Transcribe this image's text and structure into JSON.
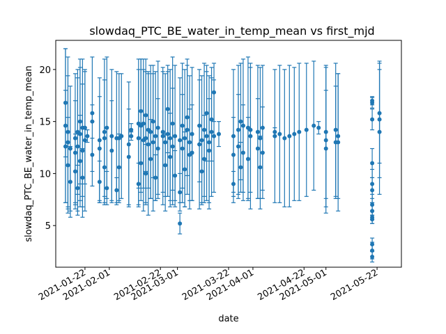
{
  "chart_data": {
    "type": "scatter",
    "title": "slowdaq_PTC_BE_water_in_temp_mean vs first_mjd",
    "xlabel": "date",
    "ylabel": "slowdaq_PTC_BE_water_in_temp_mean",
    "xlim": [
      "2021-01-10",
      "2021-06-01"
    ],
    "ylim": [
      1.0,
      22.8
    ],
    "x_tick_labels": [
      "2021-01-22",
      "2021-02-01",
      "2021-02-22",
      "2021-03-01",
      "2021-03-22",
      "2021-04-01",
      "2021-04-22",
      "2021-05-01",
      "2021-05-22"
    ],
    "y_tick_labels": [
      "5",
      "10",
      "15",
      "20"
    ],
    "error_bars": true,
    "grid": false,
    "legend": "none",
    "color": "#1f77b4",
    "points": [
      {
        "x": "2021-01-14",
        "y": 12.6,
        "err": 5.4
      },
      {
        "x": "2021-01-14",
        "y": 14.6,
        "err": 7.4
      },
      {
        "x": "2021-01-14",
        "y": 16.8,
        "err": 5.2
      },
      {
        "x": "2021-01-15",
        "y": 13.0,
        "err": 6.4
      },
      {
        "x": "2021-01-15",
        "y": 14.0,
        "err": 7.2
      },
      {
        "x": "2021-01-15",
        "y": 10.8,
        "err": 4.6
      },
      {
        "x": "2021-01-16",
        "y": 9.2,
        "err": 3.4
      },
      {
        "x": "2021-01-16",
        "y": 12.4,
        "err": 6.0
      },
      {
        "x": "2021-01-18",
        "y": 13.4,
        "err": 6.2
      },
      {
        "x": "2021-01-18",
        "y": 12.0,
        "err": 5.0
      },
      {
        "x": "2021-01-18",
        "y": 10.2,
        "err": 3.6
      },
      {
        "x": "2021-01-19",
        "y": 12.6,
        "err": 6.6
      },
      {
        "x": "2021-01-19",
        "y": 14.0,
        "err": 6.0
      },
      {
        "x": "2021-01-19",
        "y": 8.6,
        "err": 2.2
      },
      {
        "x": "2021-01-20",
        "y": 13.8,
        "err": 6.4
      },
      {
        "x": "2021-01-20",
        "y": 11.2,
        "err": 4.4
      },
      {
        "x": "2021-01-20",
        "y": 15.0,
        "err": 6.0
      },
      {
        "x": "2021-01-21",
        "y": 12.2,
        "err": 6.4
      },
      {
        "x": "2021-01-21",
        "y": 14.4,
        "err": 6.6
      },
      {
        "x": "2021-01-21",
        "y": 9.6,
        "err": 2.8
      },
      {
        "x": "2021-01-22",
        "y": 13.2,
        "err": 6.8
      },
      {
        "x": "2021-01-22",
        "y": 14.4,
        "err": 5.4
      },
      {
        "x": "2021-01-23",
        "y": 13.6,
        "err": 0.6
      },
      {
        "x": "2021-01-25",
        "y": 15.8,
        "err": 0.8
      },
      {
        "x": "2021-01-25",
        "y": 15.0,
        "err": 6.2
      },
      {
        "x": "2021-01-25",
        "y": 11.8,
        "err": 1.6
      },
      {
        "x": "2021-01-28",
        "y": 13.2,
        "err": 6.0
      },
      {
        "x": "2021-01-28",
        "y": 12.4,
        "err": 5.0
      },
      {
        "x": "2021-01-28",
        "y": 9.2,
        "err": 2.0
      },
      {
        "x": "2021-01-30",
        "y": 14.0,
        "err": 7.0
      },
      {
        "x": "2021-01-30",
        "y": 13.4,
        "err": 5.6
      },
      {
        "x": "2021-01-30",
        "y": 10.6,
        "err": 3.4
      },
      {
        "x": "2021-01-31",
        "y": 14.4,
        "err": 6.8
      },
      {
        "x": "2021-01-31",
        "y": 8.6,
        "err": 1.6
      },
      {
        "x": "2021-02-02",
        "y": 13.6,
        "err": 6.4
      },
      {
        "x": "2021-02-02",
        "y": 12.2,
        "err": 4.8
      },
      {
        "x": "2021-02-04",
        "y": 13.4,
        "err": 6.4
      },
      {
        "x": "2021-02-04",
        "y": 8.4,
        "err": 1.2
      },
      {
        "x": "2021-02-05",
        "y": 13.4,
        "err": 6.2
      },
      {
        "x": "2021-02-05",
        "y": 10.6,
        "err": 3.2
      },
      {
        "x": "2021-02-06",
        "y": 13.6,
        "err": 6.0
      },
      {
        "x": "2021-02-09",
        "y": 12.8,
        "err": 6.0
      },
      {
        "x": "2021-02-09",
        "y": 11.6,
        "err": 4.6
      },
      {
        "x": "2021-02-10",
        "y": 14.2,
        "err": 0.6
      },
      {
        "x": "2021-02-10",
        "y": 13.6,
        "err": 0.4
      },
      {
        "x": "2021-02-13",
        "y": 14.8,
        "err": 6.2
      },
      {
        "x": "2021-02-13",
        "y": 13.4,
        "err": 6.6
      },
      {
        "x": "2021-02-13",
        "y": 9.0,
        "err": 2.0
      },
      {
        "x": "2021-02-14",
        "y": 16.0,
        "err": 5.0
      },
      {
        "x": "2021-02-14",
        "y": 14.6,
        "err": 6.4
      },
      {
        "x": "2021-02-14",
        "y": 11.0,
        "err": 3.6
      },
      {
        "x": "2021-02-15",
        "y": 13.2,
        "err": 6.8
      },
      {
        "x": "2021-02-15",
        "y": 14.8,
        "err": 6.2
      },
      {
        "x": "2021-02-16",
        "y": 13.4,
        "err": 6.4
      },
      {
        "x": "2021-02-16",
        "y": 10.0,
        "err": 2.8
      },
      {
        "x": "2021-02-16",
        "y": 15.6,
        "err": 5.4
      },
      {
        "x": "2021-02-17",
        "y": 12.8,
        "err": 6.8
      },
      {
        "x": "2021-02-17",
        "y": 14.2,
        "err": 5.6
      },
      {
        "x": "2021-02-18",
        "y": 14.0,
        "err": 6.4
      },
      {
        "x": "2021-02-18",
        "y": 11.4,
        "err": 3.8
      },
      {
        "x": "2021-02-19",
        "y": 13.0,
        "err": 6.6
      },
      {
        "x": "2021-02-19",
        "y": 15.0,
        "err": 5.4
      },
      {
        "x": "2021-02-20",
        "y": 13.6,
        "err": 6.2
      },
      {
        "x": "2021-02-20",
        "y": 9.6,
        "err": 2.2
      },
      {
        "x": "2021-02-21",
        "y": 14.4,
        "err": 6.4
      },
      {
        "x": "2021-02-21",
        "y": 12.4,
        "err": 4.8
      },
      {
        "x": "2021-02-23",
        "y": 13.6,
        "err": 6.6
      },
      {
        "x": "2021-02-23",
        "y": 14.0,
        "err": 5.8
      },
      {
        "x": "2021-02-24",
        "y": 13.0,
        "err": 6.6
      },
      {
        "x": "2021-02-24",
        "y": 10.8,
        "err": 3.0
      },
      {
        "x": "2021-02-25",
        "y": 13.8,
        "err": 6.0
      },
      {
        "x": "2021-02-25",
        "y": 16.2,
        "err": 4.2
      },
      {
        "x": "2021-02-26",
        "y": 13.4,
        "err": 6.6
      },
      {
        "x": "2021-02-26",
        "y": 11.6,
        "err": 4.2
      },
      {
        "x": "2021-02-27",
        "y": 14.8,
        "err": 6.4
      },
      {
        "x": "2021-02-27",
        "y": 12.6,
        "err": 5.6
      },
      {
        "x": "2021-02-28",
        "y": 13.6,
        "err": 6.8
      },
      {
        "x": "2021-02-28",
        "y": 9.8,
        "err": 2.4
      },
      {
        "x": "2021-03-02",
        "y": 13.2,
        "err": 6.0
      },
      {
        "x": "2021-03-02",
        "y": 5.2,
        "err": 1.0
      },
      {
        "x": "2021-03-02",
        "y": 8.2,
        "err": 1.8
      },
      {
        "x": "2021-03-03",
        "y": 14.6,
        "err": 6.0
      },
      {
        "x": "2021-03-03",
        "y": 12.4,
        "err": 5.2
      },
      {
        "x": "2021-03-04",
        "y": 13.4,
        "err": 6.6
      },
      {
        "x": "2021-03-04",
        "y": 10.4,
        "err": 3.6
      },
      {
        "x": "2021-03-05",
        "y": 14.2,
        "err": 6.2
      },
      {
        "x": "2021-03-05",
        "y": 15.4,
        "err": 5.6
      },
      {
        "x": "2021-03-06",
        "y": 13.0,
        "err": 6.4
      },
      {
        "x": "2021-03-06",
        "y": 11.8,
        "err": 4.4
      },
      {
        "x": "2021-03-07",
        "y": 13.8,
        "err": 6.4
      },
      {
        "x": "2021-03-07",
        "y": 12.0,
        "err": 4.6
      },
      {
        "x": "2021-03-10",
        "y": 12.8,
        "err": 6.2
      },
      {
        "x": "2021-03-10",
        "y": 14.6,
        "err": 5.4
      },
      {
        "x": "2021-03-11",
        "y": 13.2,
        "err": 6.2
      },
      {
        "x": "2021-03-11",
        "y": 10.2,
        "err": 3.0
      },
      {
        "x": "2021-03-12",
        "y": 14.2,
        "err": 6.4
      },
      {
        "x": "2021-03-12",
        "y": 11.4,
        "err": 4.2
      },
      {
        "x": "2021-03-13",
        "y": 13.6,
        "err": 6.2
      },
      {
        "x": "2021-03-13",
        "y": 15.8,
        "err": 4.6
      },
      {
        "x": "2021-03-14",
        "y": 13.0,
        "err": 6.4
      },
      {
        "x": "2021-03-14",
        "y": 12.2,
        "err": 5.0
      },
      {
        "x": "2021-03-15",
        "y": 14.0,
        "err": 6.2
      },
      {
        "x": "2021-03-15",
        "y": 15.2,
        "err": 4.0
      },
      {
        "x": "2021-03-16",
        "y": 13.6,
        "err": 5.4
      },
      {
        "x": "2021-03-16",
        "y": 17.8,
        "err": 2.8
      },
      {
        "x": "2021-03-18",
        "y": 13.8,
        "err": 1.2
      },
      {
        "x": "2021-03-24",
        "y": 13.6,
        "err": 6.4
      },
      {
        "x": "2021-03-24",
        "y": 11.8,
        "err": 3.6
      },
      {
        "x": "2021-03-24",
        "y": 9.0,
        "err": 1.2
      },
      {
        "x": "2021-03-26",
        "y": 14.2,
        "err": 6.2
      },
      {
        "x": "2021-03-26",
        "y": 12.6,
        "err": 5.0
      },
      {
        "x": "2021-03-27",
        "y": 15.0,
        "err": 5.6
      },
      {
        "x": "2021-03-27",
        "y": 10.6,
        "err": 2.4
      },
      {
        "x": "2021-03-28",
        "y": 14.6,
        "err": 6.4
      },
      {
        "x": "2021-03-28",
        "y": 12.0,
        "err": 4.6
      },
      {
        "x": "2021-03-30",
        "y": 14.4,
        "err": 6.8
      },
      {
        "x": "2021-03-30",
        "y": 11.4,
        "err": 4.0
      },
      {
        "x": "2021-03-31",
        "y": 13.6,
        "err": 7.0
      },
      {
        "x": "2021-03-31",
        "y": 14.2,
        "err": 6.0
      },
      {
        "x": "2021-04-03",
        "y": 14.0,
        "err": 6.4
      },
      {
        "x": "2021-04-03",
        "y": 12.4,
        "err": 4.8
      },
      {
        "x": "2021-04-04",
        "y": 13.4,
        "err": 6.8
      },
      {
        "x": "2021-04-04",
        "y": 10.6,
        "err": 3.0
      },
      {
        "x": "2021-04-05",
        "y": 14.4,
        "err": 6.0
      },
      {
        "x": "2021-04-05",
        "y": 12.0,
        "err": 4.4
      },
      {
        "x": "2021-04-10",
        "y": 13.6,
        "err": 6.4
      },
      {
        "x": "2021-04-10",
        "y": 14.0,
        "err": 0.4
      },
      {
        "x": "2021-04-12",
        "y": 13.8,
        "err": 6.6
      },
      {
        "x": "2021-04-14",
        "y": 13.4,
        "err": 6.6
      },
      {
        "x": "2021-04-16",
        "y": 13.6,
        "err": 6.8
      },
      {
        "x": "2021-04-18",
        "y": 13.8,
        "err": 6.4
      },
      {
        "x": "2021-04-20",
        "y": 14.0,
        "err": 6.6
      },
      {
        "x": "2021-04-23",
        "y": 14.2,
        "err": 6.4
      },
      {
        "x": "2021-04-26",
        "y": 14.6,
        "err": 6.2
      },
      {
        "x": "2021-04-28",
        "y": 14.4,
        "err": 0.6
      },
      {
        "x": "2021-05-01",
        "y": 14.0,
        "err": 6.4
      },
      {
        "x": "2021-05-01",
        "y": 12.4,
        "err": 5.6
      },
      {
        "x": "2021-05-01",
        "y": 13.2,
        "err": 7.0
      },
      {
        "x": "2021-05-05",
        "y": 14.2,
        "err": 6.4
      },
      {
        "x": "2021-05-05",
        "y": 13.0,
        "err": 5.4
      },
      {
        "x": "2021-05-06",
        "y": 13.6,
        "err": 6.0
      },
      {
        "x": "2021-05-06",
        "y": 13.0,
        "err": 6.6
      },
      {
        "x": "2021-05-20",
        "y": 17.0,
        "err": 0.4
      },
      {
        "x": "2021-05-20",
        "y": 16.8,
        "err": 0.5
      },
      {
        "x": "2021-05-20",
        "y": 15.2,
        "err": 1.0
      },
      {
        "x": "2021-05-20",
        "y": 11.0,
        "err": 1.4
      },
      {
        "x": "2021-05-20",
        "y": 9.0,
        "err": 1.4
      },
      {
        "x": "2021-05-20",
        "y": 8.4,
        "err": 1.2
      },
      {
        "x": "2021-05-20",
        "y": 7.0,
        "err": 1.0
      },
      {
        "x": "2021-05-20",
        "y": 6.4,
        "err": 0.8
      },
      {
        "x": "2021-05-20",
        "y": 5.8,
        "err": 0.6
      },
      {
        "x": "2021-05-20",
        "y": 5.6,
        "err": 0.4
      },
      {
        "x": "2021-05-20",
        "y": 3.2,
        "err": 0.6
      },
      {
        "x": "2021-05-20",
        "y": 2.6,
        "err": 0.8
      },
      {
        "x": "2021-05-20",
        "y": 2.0,
        "err": 0.5
      },
      {
        "x": "2021-05-23",
        "y": 15.8,
        "err": 4.8
      },
      {
        "x": "2021-05-23",
        "y": 15.2,
        "err": 5.6
      },
      {
        "x": "2021-05-23",
        "y": 14.0,
        "err": 6.0
      }
    ]
  }
}
